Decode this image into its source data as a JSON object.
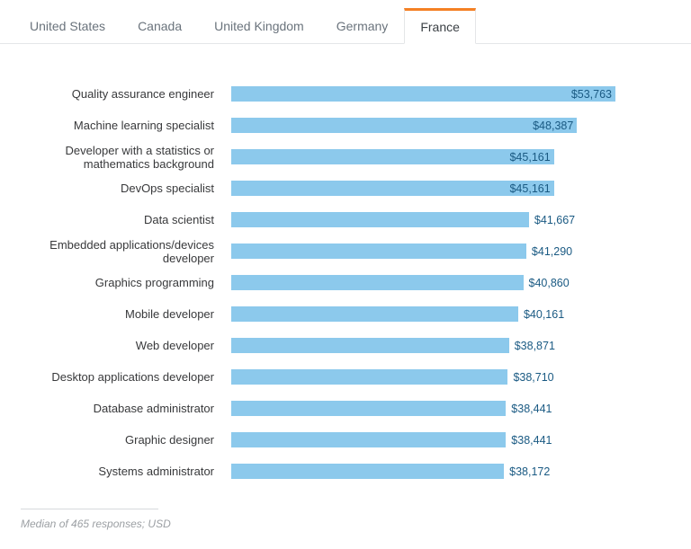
{
  "tabs": [
    {
      "label": "United States",
      "active": false
    },
    {
      "label": "Canada",
      "active": false
    },
    {
      "label": "United Kingdom",
      "active": false
    },
    {
      "label": "Germany",
      "active": false
    },
    {
      "label": "France",
      "active": true
    }
  ],
  "chart_data": {
    "type": "bar",
    "orientation": "horizontal",
    "categories": [
      "Quality assurance engineer",
      "Machine learning specialist",
      "Developer with a statistics or mathematics background",
      "DevOps specialist",
      "Data scientist",
      "Embedded applications/devices developer",
      "Graphics programming",
      "Mobile developer",
      "Web developer",
      "Desktop applications developer",
      "Database administrator",
      "Graphic designer",
      "Systems administrator"
    ],
    "values": [
      53763,
      48387,
      45161,
      45161,
      41667,
      41290,
      40860,
      40161,
      38871,
      38710,
      38441,
      38441,
      38172
    ],
    "value_labels": [
      "$53,763",
      "$48,387",
      "$45,161",
      "$45,161",
      "$41,667",
      "$41,290",
      "$40,860",
      "$40,161",
      "$38,871",
      "$38,710",
      "$38,441",
      "$38,441",
      "$38,172"
    ],
    "label_inside": [
      true,
      true,
      true,
      true,
      false,
      false,
      false,
      false,
      false,
      false,
      false,
      false,
      false
    ],
    "xlim": [
      0,
      53763
    ],
    "grid": false,
    "legend": "none",
    "bar_color": "#8cc9ec",
    "value_label_color": "#1a5a83",
    "footnote": "Median of 465 responses; USD"
  },
  "colors": {
    "accent": "#f48024",
    "border": "#e4e6e8",
    "tab_text": "#6a737c",
    "bar": "#8cc9ec",
    "value_text": "#1a5a83"
  }
}
